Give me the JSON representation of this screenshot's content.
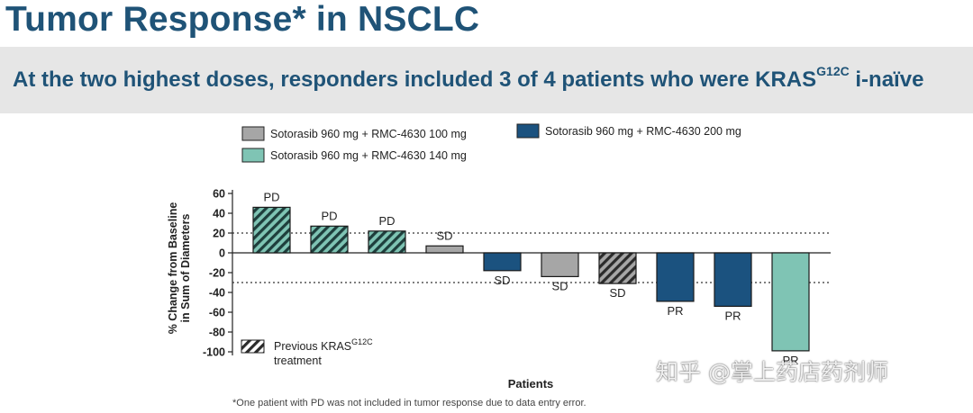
{
  "header": {
    "title": "Tumor Response* in NSCLC",
    "subtitle_main": "At the two highest doses, responders included 3 of 4 patients who were KRAS",
    "subtitle_sup": "G12C",
    "subtitle_tail": " i-naïve"
  },
  "footnote": "*One patient with PD was not included in tumor response due to data entry error.",
  "watermark": "知乎 @掌上药店药剂师",
  "colors": {
    "title": "#1f5377",
    "dose_100": "#a6a6a6",
    "dose_140": "#7fc4b4",
    "dose_200": "#1b527f",
    "gridline": "#333333"
  },
  "legend": {
    "items": [
      {
        "label": "Sotorasib 960 mg + RMC-4630 100 mg",
        "color": "#a6a6a6"
      },
      {
        "label": "Sotorasib 960 mg + RMC-4630 140 mg",
        "color": "#7fc4b4"
      },
      {
        "label": "Sotorasib 960 mg + RMC-4630 200 mg",
        "color": "#1b527f"
      }
    ],
    "hatch_label": "Previous KRAS",
    "hatch_sup": "G12C",
    "hatch_label_line2": "treatment"
  },
  "chart_data": {
    "type": "bar",
    "title": "",
    "xlabel": "Patients",
    "ylabel": "% Change from Baseline in Sum of Diameters",
    "ylabel_line1": "% Change from Baseline",
    "ylabel_line2": "in Sum of Diameters",
    "ylim": [
      -100,
      60
    ],
    "yticks": [
      60,
      40,
      20,
      0,
      -20,
      -40,
      -60,
      -80,
      -100
    ],
    "reference_lines": [
      20,
      -30
    ],
    "bars": [
      {
        "value": 46,
        "dose": "140 mg",
        "response": "PD",
        "prior_kras": true
      },
      {
        "value": 27,
        "dose": "140 mg",
        "response": "PD",
        "prior_kras": true
      },
      {
        "value": 22,
        "dose": "140 mg",
        "response": "PD",
        "prior_kras": true
      },
      {
        "value": 7,
        "dose": "100 mg",
        "response": "SD",
        "prior_kras": false
      },
      {
        "value": -18,
        "dose": "200 mg",
        "response": "SD",
        "prior_kras": false
      },
      {
        "value": -24,
        "dose": "100 mg",
        "response": "SD",
        "prior_kras": false
      },
      {
        "value": -31,
        "dose": "100 mg",
        "response": "SD",
        "prior_kras": true
      },
      {
        "value": -49,
        "dose": "200 mg",
        "response": "PR",
        "prior_kras": false
      },
      {
        "value": -54,
        "dose": "200 mg",
        "response": "PR",
        "prior_kras": false
      },
      {
        "value": -99,
        "dose": "140 mg",
        "response": "PR",
        "prior_kras": false
      }
    ]
  }
}
